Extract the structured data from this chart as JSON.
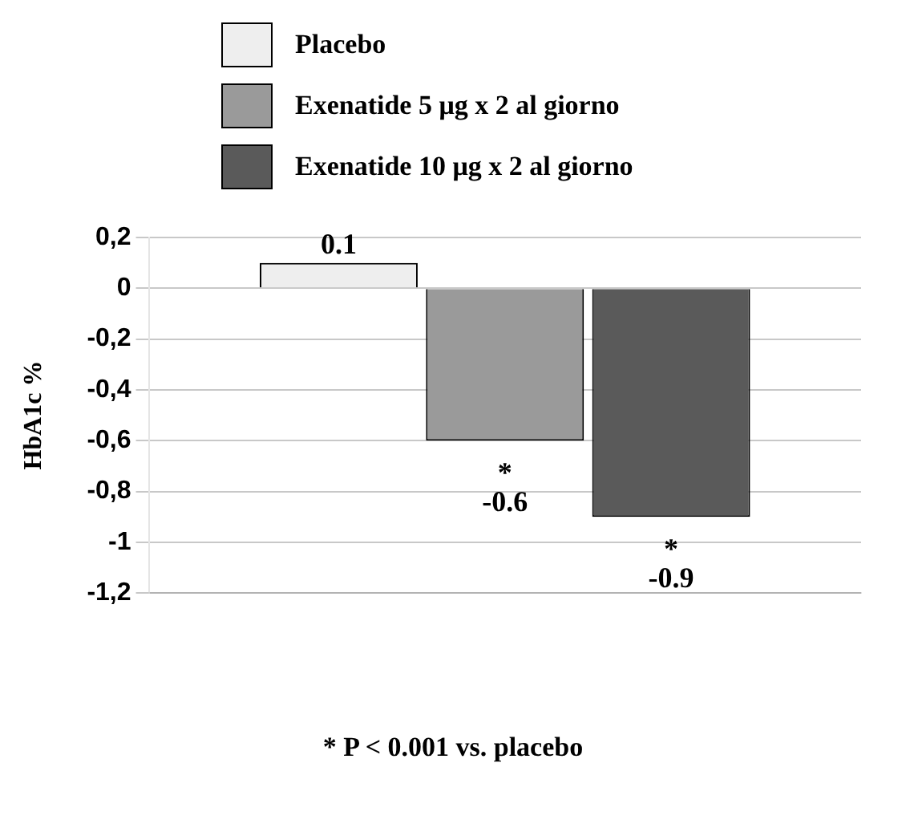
{
  "chart_data": {
    "type": "bar",
    "ylabel": "HbA1c %",
    "categories": [
      null
    ],
    "series": [
      {
        "name": "Placebo",
        "color": "#eeeeee",
        "values": [
          0.1
        ],
        "value_labels": [
          "0.1"
        ]
      },
      {
        "name": "Exenatide 5 μg x 2 al giorno",
        "color": "#9a9a9a",
        "values": [
          -0.6
        ],
        "value_labels": [
          "*\n-0.6"
        ]
      },
      {
        "name": "Exenatide 10 μg x 2 al giorno",
        "color": "#5a5a5a",
        "values": [
          -0.9
        ],
        "value_labels": [
          "*\n-0.9"
        ]
      }
    ],
    "ylim": [
      -1.2,
      0.2
    ],
    "yticks": [
      {
        "value": 0.2,
        "label": "0,2"
      },
      0,
      {
        "value": -0.2,
        "label": "-0,2"
      },
      {
        "value": -0.4,
        "label": "-0,4"
      },
      {
        "value": -0.6,
        "label": "-0,6"
      },
      {
        "value": -0.8,
        "label": "-0,8"
      },
      -1,
      {
        "value": -1.2,
        "label": "-1,2"
      }
    ],
    "grid": "y",
    "legend": "top left",
    "annotations": [
      "* P < 0.001 vs. placebo"
    ]
  }
}
